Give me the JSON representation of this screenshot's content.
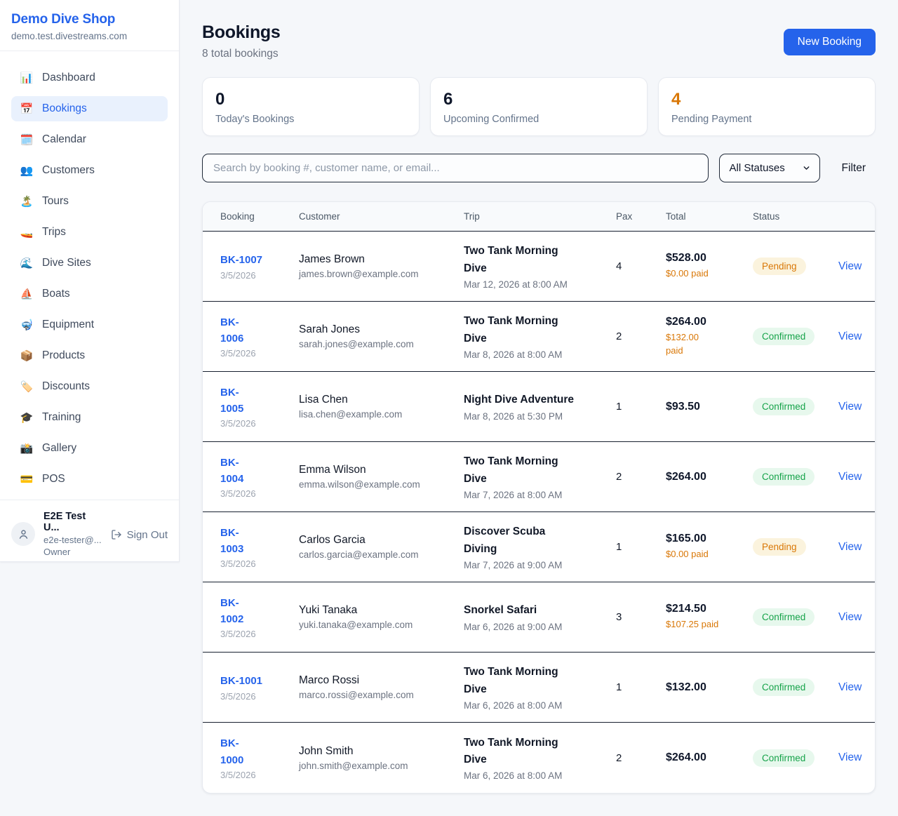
{
  "colors": {
    "accent": "#2563eb",
    "pending_text": "#d97706",
    "pending_bg": "#fbf3dd",
    "confirmed_text": "#16a34a",
    "confirmed_bg": "#e7f8ed",
    "paid_amount": "#d97706"
  },
  "sidebar": {
    "brand": {
      "name": "Demo Dive Shop",
      "domain": "demo.test.divestreams.com"
    },
    "nav": [
      {
        "label": "Dashboard",
        "icon": "bar-chart-icon",
        "emoji": "📊",
        "active": false
      },
      {
        "label": "Bookings",
        "icon": "calendar-icon",
        "emoji": "📅",
        "active": true
      },
      {
        "label": "Calendar",
        "icon": "spiral-calendar-icon",
        "emoji": "🗓️",
        "active": false
      },
      {
        "label": "Customers",
        "icon": "people-icon",
        "emoji": "👥",
        "active": false
      },
      {
        "label": "Tours",
        "icon": "island-icon",
        "emoji": "🏝️",
        "active": false
      },
      {
        "label": "Trips",
        "icon": "speedboat-icon",
        "emoji": "🚤",
        "active": false
      },
      {
        "label": "Dive Sites",
        "icon": "wave-icon",
        "emoji": "🌊",
        "active": false
      },
      {
        "label": "Boats",
        "icon": "sailboat-icon",
        "emoji": "⛵",
        "active": false
      },
      {
        "label": "Equipment",
        "icon": "diving-mask-icon",
        "emoji": "🤿",
        "active": false
      },
      {
        "label": "Products",
        "icon": "package-icon",
        "emoji": "📦",
        "active": false
      },
      {
        "label": "Discounts",
        "icon": "tag-icon",
        "emoji": "🏷️",
        "active": false
      },
      {
        "label": "Training",
        "icon": "graduation-cap-icon",
        "emoji": "🎓",
        "active": false
      },
      {
        "label": "Gallery",
        "icon": "camera-icon",
        "emoji": "📸",
        "active": false
      },
      {
        "label": "POS",
        "icon": "credit-card-icon",
        "emoji": "💳",
        "active": false
      }
    ],
    "user": {
      "name": "E2E Test U...",
      "email": "e2e-tester@...",
      "role": "Owner",
      "sign_out_label": "Sign Out"
    }
  },
  "header": {
    "title": "Bookings",
    "subtitle": "8 total bookings",
    "new_booking_label": "New Booking"
  },
  "stats": [
    {
      "value": "0",
      "label": "Today's Bookings",
      "highlight": false
    },
    {
      "value": "6",
      "label": "Upcoming Confirmed",
      "highlight": false
    },
    {
      "value": "4",
      "label": "Pending Payment",
      "highlight": true
    }
  ],
  "filters": {
    "search_placeholder": "Search by booking #, customer name, or email...",
    "status_value": "All Statuses",
    "filter_label": "Filter"
  },
  "table": {
    "columns": [
      "Booking",
      "Customer",
      "Trip",
      "Pax",
      "Total",
      "Status"
    ],
    "rows": [
      {
        "id_lines": [
          "BK-1007"
        ],
        "booked_date": "3/5/2026",
        "customer": "James Brown",
        "email": "james.brown@example.com",
        "trip_lines": [
          "Two Tank Morning",
          "Dive"
        ],
        "trip_datetime": "Mar 12, 2026 at 8:00 AM",
        "pax": "4",
        "total": "$528.00",
        "paid_lines": [
          "$0.00 paid"
        ],
        "status": "Pending",
        "action": "View"
      },
      {
        "id_lines": [
          "BK-",
          "1006"
        ],
        "booked_date": "3/5/2026",
        "customer": "Sarah Jones",
        "email": "sarah.jones@example.com",
        "trip_lines": [
          "Two Tank Morning",
          "Dive"
        ],
        "trip_datetime": "Mar 8, 2026 at 8:00 AM",
        "pax": "2",
        "total": "$264.00",
        "paid_lines": [
          "$132.00",
          "paid"
        ],
        "status": "Confirmed",
        "action": "View"
      },
      {
        "id_lines": [
          "BK-",
          "1005"
        ],
        "booked_date": "3/5/2026",
        "customer": "Lisa Chen",
        "email": "lisa.chen@example.com",
        "trip_lines": [
          "Night Dive Adventure"
        ],
        "trip_datetime": "Mar 8, 2026 at 5:30 PM",
        "pax": "1",
        "total": "$93.50",
        "paid_lines": [],
        "status": "Confirmed",
        "action": "View"
      },
      {
        "id_lines": [
          "BK-",
          "1004"
        ],
        "booked_date": "3/5/2026",
        "customer": "Emma Wilson",
        "email": "emma.wilson@example.com",
        "trip_lines": [
          "Two Tank Morning",
          "Dive"
        ],
        "trip_datetime": "Mar 7, 2026 at 8:00 AM",
        "pax": "2",
        "total": "$264.00",
        "paid_lines": [],
        "status": "Confirmed",
        "action": "View"
      },
      {
        "id_lines": [
          "BK-",
          "1003"
        ],
        "booked_date": "3/5/2026",
        "customer": "Carlos Garcia",
        "email": "carlos.garcia@example.com",
        "trip_lines": [
          "Discover Scuba",
          "Diving"
        ],
        "trip_datetime": "Mar 7, 2026 at 9:00 AM",
        "pax": "1",
        "total": "$165.00",
        "paid_lines": [
          "$0.00 paid"
        ],
        "status": "Pending",
        "action": "View"
      },
      {
        "id_lines": [
          "BK-",
          "1002"
        ],
        "booked_date": "3/5/2026",
        "customer": "Yuki Tanaka",
        "email": "yuki.tanaka@example.com",
        "trip_lines": [
          "Snorkel Safari"
        ],
        "trip_datetime": "Mar 6, 2026 at 9:00 AM",
        "pax": "3",
        "total": "$214.50",
        "paid_lines": [
          "$107.25 paid"
        ],
        "status": "Confirmed",
        "action": "View"
      },
      {
        "id_lines": [
          "BK-1001"
        ],
        "booked_date": "3/5/2026",
        "customer": "Marco Rossi",
        "email": "marco.rossi@example.com",
        "trip_lines": [
          "Two Tank Morning",
          "Dive"
        ],
        "trip_datetime": "Mar 6, 2026 at 8:00 AM",
        "pax": "1",
        "total": "$132.00",
        "paid_lines": [],
        "status": "Confirmed",
        "action": "View"
      },
      {
        "id_lines": [
          "BK-",
          "1000"
        ],
        "booked_date": "3/5/2026",
        "customer": "John Smith",
        "email": "john.smith@example.com",
        "trip_lines": [
          "Two Tank Morning",
          "Dive"
        ],
        "trip_datetime": "Mar 6, 2026 at 8:00 AM",
        "pax": "2",
        "total": "$264.00",
        "paid_lines": [],
        "status": "Confirmed",
        "action": "View"
      }
    ]
  }
}
